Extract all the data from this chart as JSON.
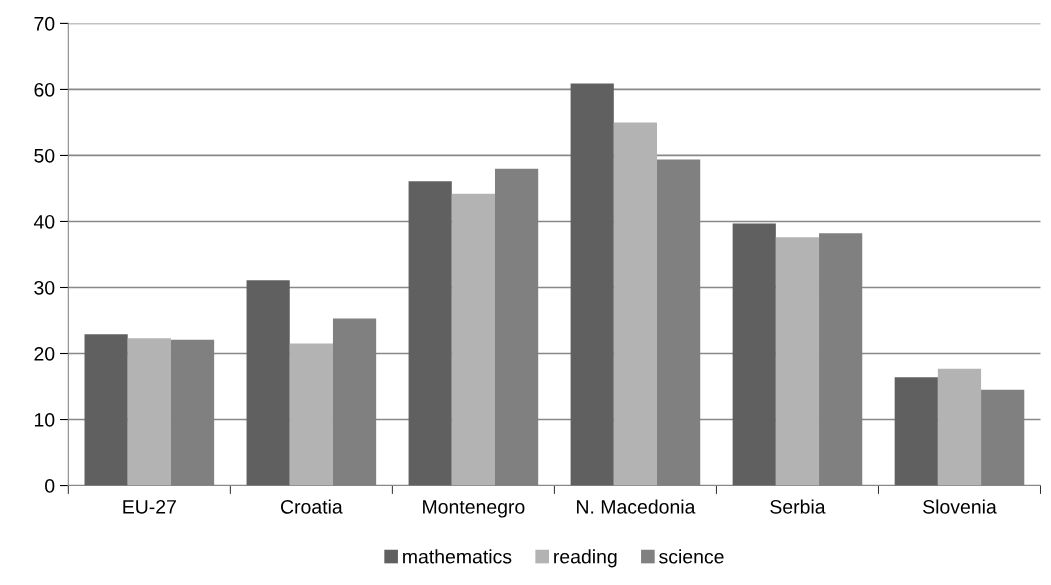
{
  "chart_data": {
    "type": "bar",
    "categories": [
      "EU-27",
      "Croatia",
      "Montenegro",
      "N. Macedonia",
      "Serbia",
      "Slovenia"
    ],
    "series": [
      {
        "name": "mathematics",
        "color": "#606060",
        "values": [
          22.9,
          31.1,
          46.1,
          60.9,
          39.7,
          16.4
        ]
      },
      {
        "name": "reading",
        "color": "#b3b3b3",
        "values": [
          22.3,
          21.5,
          44.2,
          55.0,
          37.6,
          17.7
        ]
      },
      {
        "name": "science",
        "color": "#808080",
        "values": [
          22.1,
          25.3,
          48.0,
          49.4,
          38.2,
          14.5
        ]
      }
    ],
    "ylim": [
      0,
      70
    ],
    "yticks": [
      0,
      10,
      20,
      30,
      40,
      50,
      60,
      70
    ],
    "grid": "y",
    "legend": "bottom"
  }
}
